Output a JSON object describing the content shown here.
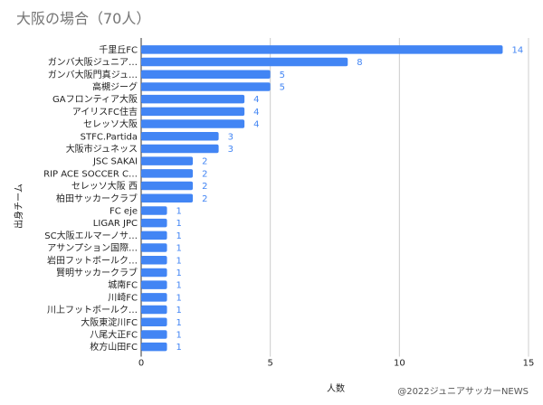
{
  "chart_data": {
    "type": "bar",
    "orientation": "horizontal",
    "title": "大阪の場合（70人）",
    "xlabel": "人数",
    "ylabel": "出身チーム",
    "xlim": [
      0,
      15
    ],
    "xticks": [
      0,
      5,
      10,
      15
    ],
    "grid": true,
    "bar_color": "#4285f4",
    "categories": [
      "千里丘FC",
      "ガンバ大阪ジュニア…",
      "ガンバ大阪門真ジュ…",
      "高槻ジーグ",
      "GAフロンティア大阪",
      "アイリスFC住吉",
      "セレッソ大阪",
      "STFC.Partida",
      "大阪市ジュネッス",
      "JSC SAKAI",
      "RIP ACE SOCCER C…",
      "セレッソ大阪 西",
      "柏田サッカークラブ",
      "FC eje",
      "LIGAR JPC",
      "SC大阪エルマーノサ…",
      "アサンプション国際…",
      "岩田フットボールク…",
      "賢明サッカークラブ",
      "城南FC",
      "川崎FC",
      "川上フットボールク…",
      "大阪東淀川FC",
      "八尾大正FC",
      "枚方山田FC"
    ],
    "values": [
      14,
      8,
      5,
      5,
      4,
      4,
      4,
      3,
      3,
      2,
      2,
      2,
      2,
      1,
      1,
      1,
      1,
      1,
      1,
      1,
      1,
      1,
      1,
      1,
      1
    ]
  },
  "credit": "@2022ジュニアサッカーNEWS"
}
